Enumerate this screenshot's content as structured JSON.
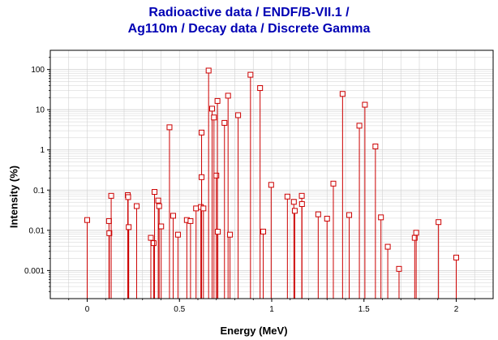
{
  "chart_data": {
    "type": "scatter",
    "style": "impulse-stem",
    "title_lines": [
      "Radioactive data / ENDF/B-VII.1 /",
      "Ag110m / Decay data / Discrete Gamma"
    ],
    "xlabel": "Energy (MeV)",
    "ylabel": "Intensity (%)",
    "xlim": [
      -0.2,
      2.2
    ],
    "ylim": [
      0.0002,
      300
    ],
    "yscale": "log",
    "grid": true,
    "x_ticks": [
      0,
      0.5,
      1,
      1.5,
      2
    ],
    "x_tick_labels": [
      "0",
      "0.5",
      "1",
      "1.5",
      "2"
    ],
    "y_ticks": [
      0.001,
      0.01,
      0.1,
      1,
      10,
      100
    ],
    "y_tick_labels": [
      "0.001",
      "0.01",
      "0.1",
      "1",
      "10",
      "100"
    ],
    "colors": {
      "series": "#cc0000",
      "title": "#0000b4",
      "grid": "#d0d0d0"
    },
    "points": [
      [
        0.0,
        0.018
      ],
      [
        0.118,
        0.017
      ],
      [
        0.12,
        0.0085
      ],
      [
        0.13,
        0.072
      ],
      [
        0.22,
        0.075
      ],
      [
        0.222,
        0.067
      ],
      [
        0.225,
        0.012
      ],
      [
        0.268,
        0.04
      ],
      [
        0.345,
        0.0065
      ],
      [
        0.36,
        0.0048
      ],
      [
        0.365,
        0.09
      ],
      [
        0.385,
        0.055
      ],
      [
        0.39,
        0.04
      ],
      [
        0.401,
        0.0125
      ],
      [
        0.446,
        3.65
      ],
      [
        0.466,
        0.023
      ],
      [
        0.492,
        0.0078
      ],
      [
        0.54,
        0.018
      ],
      [
        0.56,
        0.017
      ],
      [
        0.59,
        0.035
      ],
      [
        0.616,
        0.038
      ],
      [
        0.62,
        2.7
      ],
      [
        0.62,
        0.21
      ],
      [
        0.63,
        0.035
      ],
      [
        0.658,
        94.0
      ],
      [
        0.677,
        10.6
      ],
      [
        0.687,
        6.4
      ],
      [
        0.7,
        0.23
      ],
      [
        0.706,
        16.5
      ],
      [
        0.708,
        0.0092
      ],
      [
        0.744,
        4.7
      ],
      [
        0.7635,
        22.3
      ],
      [
        0.774,
        0.0078
      ],
      [
        0.818,
        7.3
      ],
      [
        0.885,
        74.0
      ],
      [
        0.937,
        34.5
      ],
      [
        0.954,
        0.0093
      ],
      [
        0.997,
        0.135
      ],
      [
        1.085,
        0.069
      ],
      [
        1.12,
        0.051
      ],
      [
        1.125,
        0.0305
      ],
      [
        1.163,
        0.072
      ],
      [
        1.164,
        0.045
      ],
      [
        1.252,
        0.025
      ],
      [
        1.3,
        0.0195
      ],
      [
        1.334,
        0.145
      ],
      [
        1.384,
        24.7
      ],
      [
        1.42,
        0.024
      ],
      [
        1.475,
        4.0
      ],
      [
        1.505,
        13.3
      ],
      [
        1.562,
        1.22
      ],
      [
        1.592,
        0.021
      ],
      [
        1.629,
        0.0039
      ],
      [
        1.69,
        0.0011
      ],
      [
        1.775,
        0.0065
      ],
      [
        1.783,
        0.0087
      ],
      [
        1.904,
        0.016
      ],
      [
        2.0,
        0.0021
      ]
    ]
  }
}
